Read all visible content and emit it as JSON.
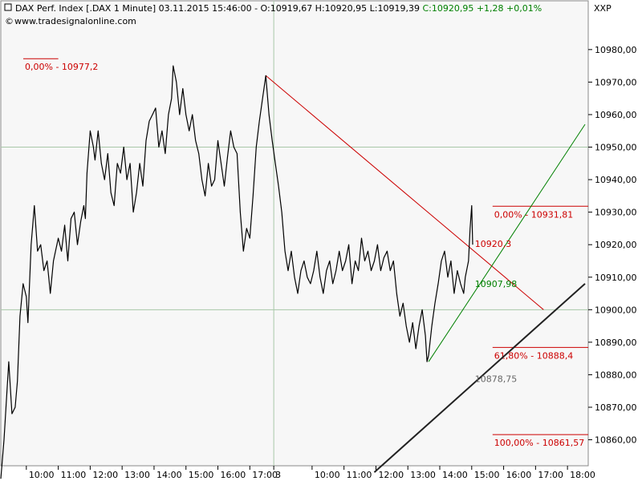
{
  "header": {
    "instrument": "DAX Perf. Index [.DAX  1 Minute] 03.11.2015 15:46:00 - O:10919,67 H:10920,95 L:10919,39 ",
    "change": "C:10920,95 +1,28 +0,01%",
    "source": "www.tradesignalonline.com",
    "ticker": "XXP"
  },
  "colors": {
    "bg": "#ffffff",
    "plot_bg": "#f7f7f7",
    "grid": "#a9c8a9",
    "price": "#000000",
    "fib": "#cc0000",
    "up": "#008000",
    "trend": "#222222",
    "label_gray": "#666666"
  },
  "chart_data": {
    "type": "line",
    "title": "DAX Perf. Index [.DAX  1 Minute] 03.11.2015",
    "ylim": [
      10852,
      10995
    ],
    "y_ticks": [
      {
        "v": 10860,
        "label": "10860,00"
      },
      {
        "v": 10870,
        "label": "10870,00"
      },
      {
        "v": 10880,
        "label": "10880,00"
      },
      {
        "v": 10890,
        "label": "10890,00"
      },
      {
        "v": 10900,
        "label": "10900,00"
      },
      {
        "v": 10910,
        "label": "10910,00"
      },
      {
        "v": 10920,
        "label": "10920,00"
      },
      {
        "v": 10930,
        "label": "10930,00"
      },
      {
        "v": 10940,
        "label": "10940,00"
      },
      {
        "v": 10950,
        "label": "10950,00"
      },
      {
        "v": 10960,
        "label": "10960,00"
      },
      {
        "v": 10970,
        "label": "10970,00"
      },
      {
        "v": 10980,
        "label": "10980,00"
      }
    ],
    "x_ticks": [
      {
        "t": 1.0,
        "label": "10:00"
      },
      {
        "t": 2.0,
        "label": "11:00"
      },
      {
        "t": 3.0,
        "label": "12:00"
      },
      {
        "t": 4.0,
        "label": "13:00"
      },
      {
        "t": 5.0,
        "label": "14:00"
      },
      {
        "t": 6.0,
        "label": "15:00"
      },
      {
        "t": 7.0,
        "label": "16:00"
      },
      {
        "t": 8.0,
        "label": "17:00"
      },
      {
        "t": 8.75,
        "label": "3"
      },
      {
        "t": 9.95,
        "label": "10:00"
      },
      {
        "t": 10.95,
        "label": "11:00"
      },
      {
        "t": 11.95,
        "label": "12:00"
      },
      {
        "t": 12.95,
        "label": "13:00"
      },
      {
        "t": 13.95,
        "label": "14:00"
      },
      {
        "t": 14.95,
        "label": "15:00"
      },
      {
        "t": 15.95,
        "label": "16:00"
      },
      {
        "t": 16.95,
        "label": "17:00"
      },
      {
        "t": 17.95,
        "label": "18:00"
      }
    ],
    "x_range": [
      0.2,
      18.6
    ],
    "grid_x": [
      8.75
    ],
    "grid_y": [
      10950,
      10900
    ],
    "price_series": {
      "name": "",
      "points": [
        [
          0.2,
          10848
        ],
        [
          0.3,
          10860
        ],
        [
          0.45,
          10884
        ],
        [
          0.55,
          10868
        ],
        [
          0.65,
          10870
        ],
        [
          0.72,
          10878
        ],
        [
          0.8,
          10898
        ],
        [
          0.9,
          10908
        ],
        [
          1.0,
          10904
        ],
        [
          1.05,
          10896
        ],
        [
          1.15,
          10920
        ],
        [
          1.25,
          10932
        ],
        [
          1.35,
          10918
        ],
        [
          1.45,
          10920
        ],
        [
          1.55,
          10912
        ],
        [
          1.65,
          10915
        ],
        [
          1.75,
          10905
        ],
        [
          1.85,
          10915
        ],
        [
          2.0,
          10922
        ],
        [
          2.1,
          10918
        ],
        [
          2.2,
          10926
        ],
        [
          2.3,
          10915
        ],
        [
          2.4,
          10928
        ],
        [
          2.5,
          10930
        ],
        [
          2.6,
          10920
        ],
        [
          2.7,
          10927
        ],
        [
          2.8,
          10932
        ],
        [
          2.85,
          10928
        ],
        [
          2.9,
          10942
        ],
        [
          3.0,
          10955
        ],
        [
          3.1,
          10950
        ],
        [
          3.15,
          10946
        ],
        [
          3.25,
          10955
        ],
        [
          3.35,
          10945
        ],
        [
          3.45,
          10940
        ],
        [
          3.55,
          10948
        ],
        [
          3.65,
          10936
        ],
        [
          3.75,
          10932
        ],
        [
          3.85,
          10945
        ],
        [
          3.95,
          10942
        ],
        [
          4.05,
          10950
        ],
        [
          4.15,
          10940
        ],
        [
          4.25,
          10945
        ],
        [
          4.35,
          10930
        ],
        [
          4.45,
          10936
        ],
        [
          4.55,
          10945
        ],
        [
          4.65,
          10938
        ],
        [
          4.75,
          10952
        ],
        [
          4.85,
          10958
        ],
        [
          4.95,
          10960
        ],
        [
          5.05,
          10962
        ],
        [
          5.15,
          10950
        ],
        [
          5.25,
          10955
        ],
        [
          5.35,
          10948
        ],
        [
          5.45,
          10960
        ],
        [
          5.55,
          10965
        ],
        [
          5.6,
          10975
        ],
        [
          5.7,
          10970
        ],
        [
          5.8,
          10960
        ],
        [
          5.9,
          10968
        ],
        [
          6.0,
          10960
        ],
        [
          6.1,
          10955
        ],
        [
          6.2,
          10960
        ],
        [
          6.3,
          10952
        ],
        [
          6.4,
          10948
        ],
        [
          6.5,
          10940
        ],
        [
          6.6,
          10935
        ],
        [
          6.7,
          10945
        ],
        [
          6.8,
          10938
        ],
        [
          6.9,
          10940
        ],
        [
          7.0,
          10952
        ],
        [
          7.1,
          10945
        ],
        [
          7.2,
          10938
        ],
        [
          7.3,
          10947
        ],
        [
          7.4,
          10955
        ],
        [
          7.5,
          10950
        ],
        [
          7.6,
          10948
        ],
        [
          7.7,
          10930
        ],
        [
          7.8,
          10918
        ],
        [
          7.9,
          10925
        ],
        [
          8.0,
          10922
        ],
        [
          8.1,
          10935
        ],
        [
          8.2,
          10950
        ],
        [
          8.3,
          10958
        ],
        [
          8.4,
          10965
        ],
        [
          8.5,
          10972
        ],
        [
          8.6,
          10960
        ],
        [
          8.7,
          10952
        ],
        [
          8.8,
          10945
        ],
        [
          8.9,
          10938
        ],
        [
          9.0,
          10930
        ],
        [
          9.1,
          10918
        ],
        [
          9.2,
          10912
        ],
        [
          9.3,
          10918
        ],
        [
          9.4,
          10910
        ],
        [
          9.5,
          10905
        ],
        [
          9.6,
          10912
        ],
        [
          9.7,
          10915
        ],
        [
          9.8,
          10910
        ],
        [
          9.9,
          10908
        ],
        [
          10.0,
          10912
        ],
        [
          10.1,
          10918
        ],
        [
          10.2,
          10910
        ],
        [
          10.3,
          10905
        ],
        [
          10.4,
          10912
        ],
        [
          10.5,
          10915
        ],
        [
          10.6,
          10908
        ],
        [
          10.7,
          10912
        ],
        [
          10.8,
          10918
        ],
        [
          10.9,
          10912
        ],
        [
          11.0,
          10915
        ],
        [
          11.1,
          10920
        ],
        [
          11.2,
          10908
        ],
        [
          11.3,
          10915
        ],
        [
          11.4,
          10912
        ],
        [
          11.5,
          10922
        ],
        [
          11.6,
          10915
        ],
        [
          11.7,
          10918
        ],
        [
          11.8,
          10912
        ],
        [
          11.9,
          10915
        ],
        [
          12.0,
          10920
        ],
        [
          12.1,
          10912
        ],
        [
          12.2,
          10916
        ],
        [
          12.3,
          10918
        ],
        [
          12.4,
          10912
        ],
        [
          12.5,
          10915
        ],
        [
          12.6,
          10905
        ],
        [
          12.7,
          10898
        ],
        [
          12.8,
          10902
        ],
        [
          12.9,
          10895
        ],
        [
          13.0,
          10890
        ],
        [
          13.1,
          10896
        ],
        [
          13.2,
          10888
        ],
        [
          13.3,
          10895
        ],
        [
          13.4,
          10900
        ],
        [
          13.5,
          10892
        ],
        [
          13.55,
          10884
        ],
        [
          13.6,
          10886
        ],
        [
          13.7,
          10895
        ],
        [
          13.8,
          10902
        ],
        [
          13.9,
          10908
        ],
        [
          14.0,
          10915
        ],
        [
          14.1,
          10918
        ],
        [
          14.2,
          10910
        ],
        [
          14.3,
          10915
        ],
        [
          14.4,
          10905
        ],
        [
          14.5,
          10912
        ],
        [
          14.6,
          10908
        ],
        [
          14.7,
          10905
        ],
        [
          14.75,
          10910
        ],
        [
          14.85,
          10915
        ],
        [
          14.9,
          10925
        ],
        [
          14.95,
          10932
        ],
        [
          14.98,
          10920
        ]
      ]
    },
    "fib_retracement": [
      {
        "label": "0,00% - 10977,2",
        "value": 10977.2,
        "x_start": 0.2,
        "x_end": 2.0
      },
      {
        "label": "0,00% - 10931,81",
        "value": 10931.81,
        "x_start": 14.9,
        "x_end": 18.6
      },
      {
        "label": "61,80% - 10888,4",
        "value": 10888.4,
        "x_start": 14.9,
        "x_end": 18.6
      },
      {
        "label": "100,00% - 10861,57",
        "value": 10861.57,
        "x_start": 14.9,
        "x_end": 18.6
      }
    ],
    "trend_lines": [
      {
        "name": "down",
        "color": "fib",
        "from": [
          8.5,
          10972
        ],
        "to": [
          17.2,
          10900
        ]
      },
      {
        "name": "up",
        "color": "up",
        "from": [
          13.6,
          10884
        ],
        "to": [
          18.5,
          10957
        ]
      },
      {
        "name": "long",
        "color": "trend",
        "from": [
          11.9,
          10850
        ],
        "to": [
          18.5,
          10908
        ]
      }
    ],
    "annotations": [
      {
        "text": "10920,3",
        "t": 15.05,
        "v": 10920.3,
        "color": "fib"
      },
      {
        "text": "10907,98",
        "t": 15.05,
        "v": 10907.98,
        "color": "up"
      },
      {
        "text": "10878,75",
        "t": 15.05,
        "v": 10878.75,
        "color": "label_gray"
      }
    ]
  }
}
